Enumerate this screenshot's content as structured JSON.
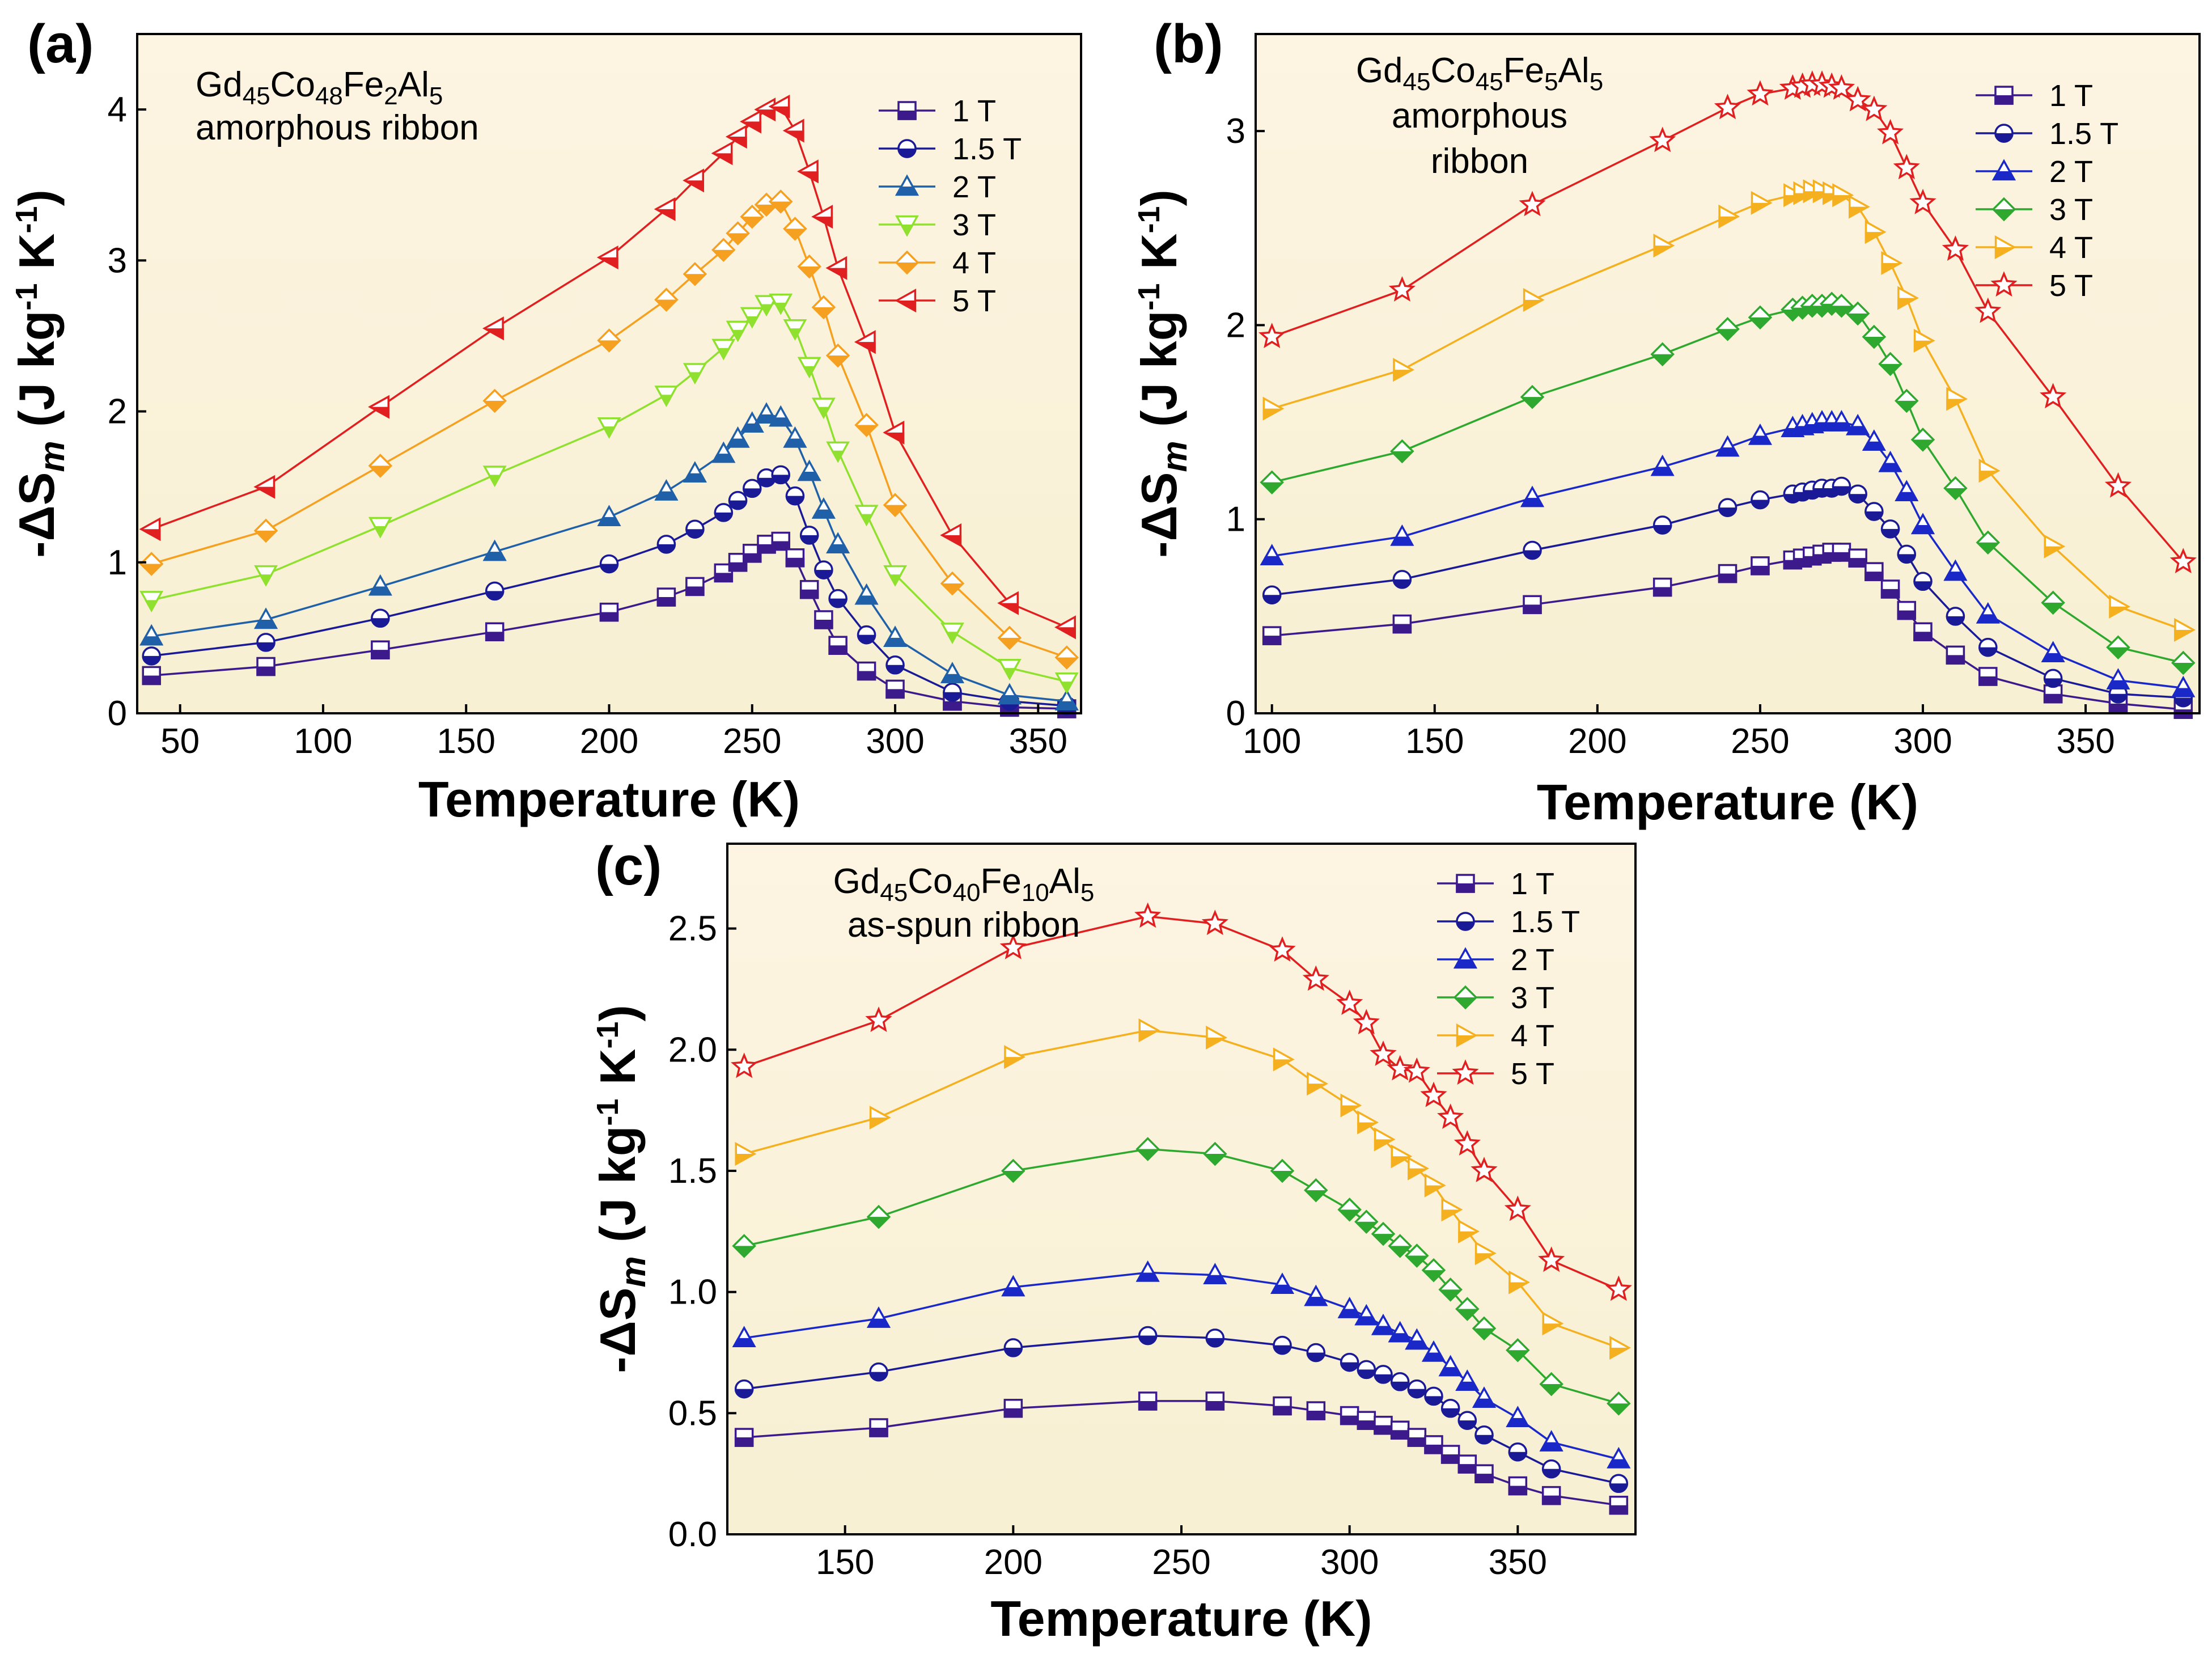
{
  "chart_data": [
    {
      "type": "line",
      "panel_label": "(a)",
      "annotation_lines": [
        "Gd45Co48Fe2Al5",
        "amorphous ribbon"
      ],
      "xlabel": "Temperature (K)",
      "ylabel": "-ΔSm (J kg-1 K-1)",
      "xlim": [
        35,
        365
      ],
      "ylim": [
        0,
        4.5
      ],
      "xticks": [
        50,
        100,
        150,
        200,
        250,
        300,
        350
      ],
      "yticks": [
        0,
        1,
        2,
        3,
        4
      ],
      "x": [
        40,
        80,
        120,
        160,
        200,
        220,
        230,
        240,
        245,
        250,
        255,
        260,
        265,
        270,
        275,
        280,
        290,
        300,
        320,
        340,
        360
      ],
      "legend_position": "top-right",
      "series": [
        {
          "name": "1 T",
          "marker": "square",
          "color": "#3d1a8c",
          "values": [
            0.25,
            0.31,
            0.42,
            0.54,
            0.67,
            0.77,
            0.84,
            0.93,
            1.0,
            1.06,
            1.12,
            1.14,
            1.03,
            0.82,
            0.62,
            0.45,
            0.28,
            0.16,
            0.08,
            0.04,
            0.03
          ]
        },
        {
          "name": "1.5 T",
          "marker": "circle",
          "color": "#1a1a96",
          "values": [
            0.38,
            0.47,
            0.63,
            0.81,
            0.99,
            1.12,
            1.22,
            1.33,
            1.41,
            1.49,
            1.56,
            1.58,
            1.44,
            1.18,
            0.95,
            0.76,
            0.52,
            0.32,
            0.14,
            0.08,
            0.05
          ]
        },
        {
          "name": "2 T",
          "marker": "triangle-up",
          "color": "#2060a8",
          "values": [
            0.51,
            0.62,
            0.84,
            1.07,
            1.3,
            1.47,
            1.59,
            1.72,
            1.82,
            1.92,
            1.98,
            1.96,
            1.82,
            1.6,
            1.35,
            1.12,
            0.78,
            0.5,
            0.26,
            0.12,
            0.08
          ]
        },
        {
          "name": "3 T",
          "marker": "triangle-down",
          "color": "#90e030",
          "values": [
            0.75,
            0.92,
            1.24,
            1.58,
            1.9,
            2.11,
            2.26,
            2.42,
            2.54,
            2.63,
            2.71,
            2.72,
            2.55,
            2.3,
            2.03,
            1.74,
            1.32,
            0.92,
            0.54,
            0.3,
            0.21
          ]
        },
        {
          "name": "4 T",
          "marker": "diamond",
          "color": "#f5a020",
          "values": [
            0.99,
            1.21,
            1.64,
            2.07,
            2.47,
            2.74,
            2.91,
            3.07,
            3.18,
            3.29,
            3.37,
            3.39,
            3.21,
            2.96,
            2.69,
            2.37,
            1.91,
            1.38,
            0.86,
            0.5,
            0.37
          ]
        },
        {
          "name": "5 T",
          "marker": "triangle-left",
          "color": "#e02020",
          "values": [
            1.22,
            1.5,
            2.03,
            2.55,
            3.02,
            3.34,
            3.53,
            3.71,
            3.82,
            3.92,
            4.0,
            4.02,
            3.86,
            3.59,
            3.29,
            2.95,
            2.46,
            1.86,
            1.18,
            0.73,
            0.57
          ]
        }
      ]
    },
    {
      "type": "line",
      "panel_label": "(b)",
      "annotation_lines": [
        "Gd45Co45Fe5Al5",
        "amorphous",
        "ribbon"
      ],
      "xlabel": "Temperature (K)",
      "ylabel": "-ΔSm (J kg-1 K-1)",
      "xlim": [
        95,
        385
      ],
      "ylim": [
        0,
        3.5
      ],
      "xticks": [
        100,
        150,
        200,
        250,
        300,
        350
      ],
      "yticks": [
        0,
        1,
        2,
        3
      ],
      "x": [
        100,
        140,
        180,
        220,
        240,
        250,
        260,
        263,
        266,
        269,
        272,
        275,
        280,
        285,
        290,
        295,
        300,
        310,
        320,
        340,
        360,
        380
      ],
      "legend_position": "top-right",
      "series": [
        {
          "name": "1 T",
          "marker": "square",
          "color": "#3d1a8c",
          "values": [
            0.4,
            0.46,
            0.56,
            0.65,
            0.72,
            0.76,
            0.79,
            0.8,
            0.81,
            0.82,
            0.83,
            0.83,
            0.8,
            0.73,
            0.64,
            0.53,
            0.42,
            0.3,
            0.19,
            0.1,
            0.05,
            0.02
          ]
        },
        {
          "name": "1.5 T",
          "marker": "circle",
          "color": "#1a1a96",
          "values": [
            0.61,
            0.69,
            0.84,
            0.97,
            1.06,
            1.1,
            1.13,
            1.14,
            1.15,
            1.16,
            1.16,
            1.17,
            1.13,
            1.04,
            0.95,
            0.82,
            0.68,
            0.5,
            0.34,
            0.18,
            0.1,
            0.08
          ]
        },
        {
          "name": "2 T",
          "marker": "triangle-up",
          "color": "#1a28c8",
          "values": [
            0.81,
            0.91,
            1.11,
            1.27,
            1.37,
            1.43,
            1.47,
            1.48,
            1.49,
            1.5,
            1.5,
            1.5,
            1.48,
            1.4,
            1.29,
            1.14,
            0.97,
            0.73,
            0.51,
            0.31,
            0.17,
            0.13
          ]
        },
        {
          "name": "3 T",
          "marker": "diamond",
          "color": "#2ea82e",
          "values": [
            1.19,
            1.35,
            1.63,
            1.85,
            1.98,
            2.04,
            2.08,
            2.09,
            2.1,
            2.1,
            2.11,
            2.1,
            2.06,
            1.94,
            1.8,
            1.61,
            1.41,
            1.16,
            0.88,
            0.57,
            0.34,
            0.26
          ]
        },
        {
          "name": "4 T",
          "marker": "triangle-right",
          "color": "#f5b020",
          "values": [
            1.57,
            1.77,
            2.13,
            2.41,
            2.56,
            2.63,
            2.67,
            2.68,
            2.69,
            2.69,
            2.68,
            2.67,
            2.61,
            2.48,
            2.32,
            2.14,
            1.92,
            1.62,
            1.25,
            0.86,
            0.55,
            0.43
          ]
        },
        {
          "name": "5 T",
          "marker": "star",
          "color": "#e02020",
          "values": [
            1.94,
            2.18,
            2.62,
            2.95,
            3.12,
            3.19,
            3.22,
            3.23,
            3.24,
            3.24,
            3.23,
            3.22,
            3.16,
            3.11,
            2.99,
            2.81,
            2.63,
            2.39,
            2.07,
            1.63,
            1.17,
            0.78
          ]
        }
      ]
    },
    {
      "type": "line",
      "panel_label": "(c)",
      "annotation_lines": [
        "Gd45Co40Fe10Al5",
        "as-spun ribbon"
      ],
      "xlabel": "Temperature (K)",
      "ylabel": "-ΔSm (J kg-1 K-1)",
      "xlim": [
        115,
        385
      ],
      "ylim": [
        0,
        2.85
      ],
      "xticks": [
        150,
        200,
        250,
        300,
        350
      ],
      "yticks": [
        "0.0",
        "0.5",
        "1.0",
        "1.5",
        "2.0",
        "2.5"
      ],
      "x": [
        120,
        160,
        200,
        240,
        260,
        280,
        290,
        300,
        305,
        310,
        315,
        320,
        325,
        330,
        335,
        340,
        350,
        360,
        380
      ],
      "legend_position": "top-right",
      "series": [
        {
          "name": "1 T",
          "marker": "square",
          "color": "#3d1a8c",
          "values": [
            0.4,
            0.44,
            0.52,
            0.55,
            0.55,
            0.53,
            0.51,
            0.49,
            0.47,
            0.45,
            0.43,
            0.4,
            0.37,
            0.33,
            0.29,
            0.25,
            0.2,
            0.16,
            0.12
          ]
        },
        {
          "name": "1.5 T",
          "marker": "circle",
          "color": "#1a1a96",
          "values": [
            0.6,
            0.67,
            0.77,
            0.82,
            0.81,
            0.78,
            0.75,
            0.71,
            0.68,
            0.66,
            0.63,
            0.6,
            0.57,
            0.52,
            0.47,
            0.41,
            0.34,
            0.27,
            0.21
          ]
        },
        {
          "name": "2 T",
          "marker": "triangle-up",
          "color": "#1a28c8",
          "values": [
            0.81,
            0.89,
            1.02,
            1.08,
            1.07,
            1.03,
            0.98,
            0.93,
            0.9,
            0.86,
            0.83,
            0.8,
            0.75,
            0.69,
            0.63,
            0.56,
            0.48,
            0.38,
            0.31
          ]
        },
        {
          "name": "3 T",
          "marker": "diamond",
          "color": "#2ea82e",
          "values": [
            1.19,
            1.31,
            1.5,
            1.59,
            1.57,
            1.5,
            1.42,
            1.34,
            1.29,
            1.24,
            1.19,
            1.15,
            1.09,
            1.01,
            0.93,
            0.85,
            0.76,
            0.62,
            0.54
          ]
        },
        {
          "name": "4 T",
          "marker": "triangle-right",
          "color": "#f5b020",
          "values": [
            1.57,
            1.72,
            1.97,
            2.08,
            2.05,
            1.96,
            1.86,
            1.77,
            1.7,
            1.63,
            1.56,
            1.51,
            1.44,
            1.34,
            1.25,
            1.16,
            1.04,
            0.87,
            0.77
          ]
        },
        {
          "name": "5 T",
          "marker": "star",
          "color": "#e02020",
          "values": [
            1.93,
            2.12,
            2.42,
            2.55,
            2.52,
            2.41,
            2.29,
            2.19,
            2.11,
            1.98,
            1.92,
            1.91,
            1.81,
            1.72,
            1.61,
            1.5,
            1.34,
            1.13,
            1.01
          ]
        }
      ]
    }
  ]
}
